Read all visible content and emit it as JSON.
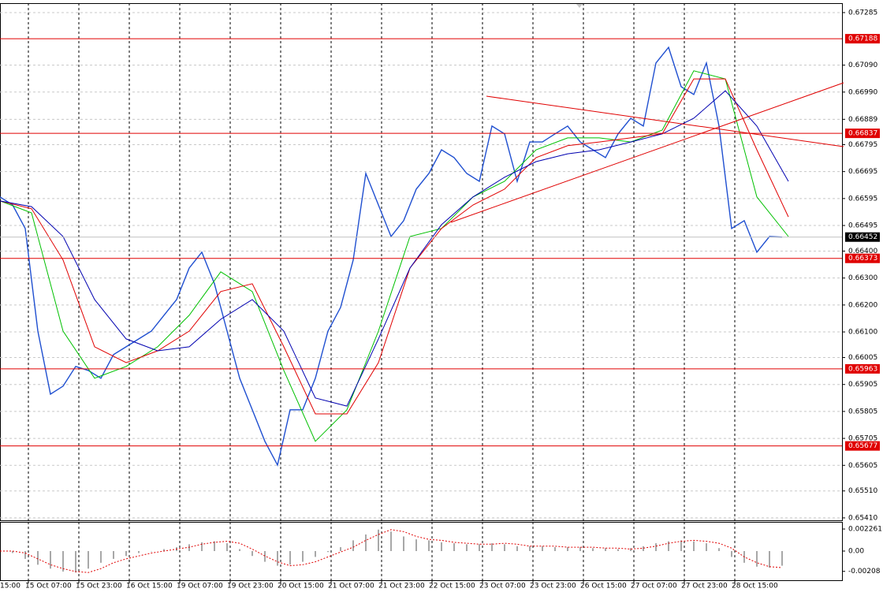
{
  "chart_data": [
    {
      "type": "line",
      "xlim": [
        0,
        267
      ],
      "xticks": [
        {
          "value": -7,
          "label": "15:00"
        },
        {
          "value": 9,
          "label": "15 Oct 07:00"
        },
        {
          "value": 25,
          "label": "15 Oct 23:00"
        },
        {
          "value": 41,
          "label": "16 Oct 15:00"
        },
        {
          "value": 57,
          "label": "19 Oct 07:00"
        },
        {
          "value": 73,
          "label": "19 Oct 23:00"
        },
        {
          "value": 89,
          "label": "20 Oct 15:00"
        },
        {
          "value": 105,
          "label": "21 Oct 07:00"
        },
        {
          "value": 121,
          "label": "21 Oct 23:00"
        },
        {
          "value": 137,
          "label": "22 Oct 15:00"
        },
        {
          "value": 153,
          "label": "23 Oct 07:00"
        },
        {
          "value": 169,
          "label": "23 Oct 23:00"
        },
        {
          "value": 185,
          "label": "26 Oct 15:00"
        },
        {
          "value": 201,
          "label": "27 Oct 07:00"
        },
        {
          "value": 217,
          "label": "27 Oct 23:00"
        },
        {
          "value": 233,
          "label": "28 Oct 15:00"
        }
      ],
      "ylim": [
        0.65401,
        0.6732
      ],
      "yticks": [
        0.67285,
        {
          "value": 0.6709,
          "label": "0.67090"
        },
        {
          "value": 0.6699,
          "label": "0.66990"
        },
        0.66889,
        0.66795,
        0.66695,
        0.66595,
        0.66495,
        {
          "value": 0.664,
          "label": "0.66400"
        },
        {
          "value": 0.663,
          "label": "0.66300"
        },
        {
          "value": 0.662,
          "label": "0.66200"
        },
        {
          "value": 0.661,
          "label": "0.66100"
        },
        0.66005,
        0.65905,
        0.65805,
        0.65705,
        0.65605,
        {
          "value": 0.6551,
          "label": "0.65510"
        },
        {
          "value": 0.6541,
          "label": "0.65410"
        }
      ],
      "grid": true,
      "series": [
        {
          "color": "#1f4fd0",
          "width": 1.4,
          "x": [
            0,
            4,
            8,
            12,
            16,
            20,
            24,
            28,
            32,
            36,
            40,
            44,
            48,
            52,
            56,
            60,
            64,
            68,
            72,
            76,
            80,
            84,
            88,
            92,
            96,
            100,
            104,
            108,
            112,
            116,
            120,
            124,
            128,
            132,
            136,
            140,
            144,
            148,
            152,
            156,
            160,
            164,
            168,
            172,
            176,
            180,
            184,
            188,
            192,
            196,
            200,
            204,
            208,
            212,
            216,
            220,
            224,
            228,
            232,
            236,
            240,
            244,
            248
          ],
          "values": [
            0.66601,
            0.66571,
            0.66484,
            0.66103,
            0.65869,
            0.65899,
            0.65972,
            0.65957,
            0.65928,
            0.66016,
            0.66045,
            0.66074,
            0.66103,
            0.66162,
            0.6622,
            0.66337,
            0.66396,
            0.66279,
            0.66103,
            0.65928,
            0.65811,
            0.65694,
            0.65606,
            0.65811,
            0.65811,
            0.65928,
            0.66103,
            0.66191,
            0.66367,
            0.66688,
            0.66571,
            0.66454,
            0.66513,
            0.6663,
            0.66688,
            0.66776,
            0.66747,
            0.66688,
            0.66659,
            0.66864,
            0.66835,
            0.66659,
            0.66805,
            0.66805,
            0.66835,
            0.66864,
            0.66805,
            0.66776,
            0.66747,
            0.66835,
            0.66893,
            0.66864,
            0.67098,
            0.67156,
            0.6701,
            0.66981,
            0.67098,
            0.66864,
            0.66484,
            0.66513,
            0.66396,
            0.66454,
            0.66452
          ]
        },
        {
          "color": "#00c000",
          "width": 1,
          "x": [
            0,
            10,
            20,
            30,
            40,
            50,
            60,
            70,
            80,
            90,
            100,
            110,
            120,
            130,
            140,
            150,
            160,
            170,
            180,
            190,
            200,
            210,
            220,
            230,
            240,
            250
          ],
          "values": [
            0.66586,
            0.66542,
            0.66103,
            0.65928,
            0.65972,
            0.66045,
            0.66162,
            0.66323,
            0.6625,
            0.65957,
            0.65694,
            0.65811,
            0.66103,
            0.66454,
            0.66484,
            0.66601,
            0.66659,
            0.66776,
            0.6682,
            0.6682,
            0.66805,
            0.66849,
            0.67069,
            0.67039,
            0.66601,
            0.66454
          ]
        },
        {
          "color": "#e00000",
          "width": 1,
          "x": [
            0,
            10,
            20,
            30,
            40,
            50,
            60,
            70,
            80,
            90,
            100,
            110,
            120,
            130,
            140,
            150,
            160,
            170,
            180,
            190,
            200,
            210,
            220,
            230,
            240,
            250
          ],
          "values": [
            0.66586,
            0.66557,
            0.66367,
            0.66045,
            0.65986,
            0.6603,
            0.66103,
            0.6625,
            0.66279,
            0.66045,
            0.65796,
            0.65796,
            0.65986,
            0.66337,
            0.66484,
            0.66571,
            0.6663,
            0.66747,
            0.66791,
            0.66805,
            0.6682,
            0.66835,
            0.67039,
            0.67039,
            0.66776,
            0.66527
          ]
        },
        {
          "color": "#0000b0",
          "width": 1,
          "x": [
            0,
            10,
            20,
            30,
            40,
            50,
            60,
            70,
            80,
            90,
            100,
            110,
            120,
            130,
            140,
            150,
            160,
            170,
            180,
            190,
            200,
            210,
            220,
            230,
            240,
            250
          ],
          "values": [
            0.66586,
            0.66565,
            0.66454,
            0.6622,
            0.66074,
            0.6603,
            0.66045,
            0.66147,
            0.6622,
            0.66103,
            0.65855,
            0.65825,
            0.66074,
            0.66337,
            0.66498,
            0.66601,
            0.66674,
            0.66732,
            0.66761,
            0.66776,
            0.66805,
            0.66835,
            0.66893,
            0.66995,
            0.66864,
            0.66659
          ]
        }
      ],
      "levels": {
        "color": "#e00000",
        "values": [
          0.67188,
          0.66837,
          0.66373,
          0.65963,
          0.65677
        ]
      },
      "last_price": 0.66452
    },
    {
      "type": "bar",
      "xlim": [
        0,
        267
      ],
      "ylim": [
        -0.00299,
        0.00299
      ],
      "yticks": [
        0.002261,
        {
          "value": 0,
          "label": "0.00"
        },
        -0.00208
      ],
      "series": [
        {
          "color": "#a8a8a8",
          "x": [
            0,
            4,
            8,
            12,
            16,
            20,
            24,
            28,
            32,
            36,
            40,
            44,
            48,
            52,
            56,
            60,
            64,
            68,
            72,
            76,
            80,
            84,
            88,
            92,
            96,
            100,
            104,
            108,
            112,
            116,
            120,
            124,
            128,
            132,
            136,
            140,
            144,
            148,
            152,
            156,
            160,
            164,
            168,
            172,
            176,
            180,
            184,
            188,
            192,
            196,
            200,
            204,
            208,
            212,
            216,
            220,
            224,
            228,
            232,
            236,
            240,
            244,
            248
          ],
          "values": [
            0,
            -0.0002,
            -0.0008,
            -0.0014,
            -0.0018,
            -0.0021,
            -0.0022,
            -0.0018,
            -0.0012,
            -0.0008,
            -0.0005,
            -0.0002,
            0,
            0.0002,
            0.0004,
            0.0007,
            0.0009,
            0.001,
            0.0008,
            0.0002,
            -0.0005,
            -0.0011,
            -0.0015,
            -0.0014,
            -0.0011,
            -0.0006,
            -0.0001,
            0.0004,
            0.0011,
            0.0017,
            0.0022,
            0.002,
            0.0015,
            0.0012,
            0.0011,
            0.0009,
            0.0008,
            0.0007,
            0.0007,
            0.0008,
            0.0007,
            0.0005,
            0.0005,
            0.0005,
            0.0004,
            0.0004,
            0.0004,
            0.0003,
            0.0003,
            0.0002,
            0.0003,
            0.0005,
            0.0008,
            0.001,
            0.0011,
            0.001,
            0.0008,
            0.0003,
            -0.0006,
            -0.0012,
            -0.0016,
            -0.0017,
            -0.0015
          ]
        },
        {
          "color": "#e00000",
          "kind": "line",
          "x": [
            0,
            4,
            8,
            12,
            16,
            20,
            24,
            28,
            32,
            36,
            40,
            44,
            48,
            52,
            56,
            60,
            64,
            68,
            72,
            76,
            80,
            84,
            88,
            92,
            96,
            100,
            104,
            108,
            112,
            116,
            120,
            124,
            128,
            132,
            136,
            140,
            144,
            148,
            152,
            156,
            160,
            164,
            168,
            172,
            176,
            180,
            184,
            188,
            192,
            196,
            200,
            204,
            208,
            212,
            216,
            220,
            224,
            228,
            232,
            236,
            240,
            244,
            248
          ],
          "values": [
            0,
            0,
            -0.0002,
            -0.0008,
            -0.0014,
            -0.0018,
            -0.0021,
            -0.0022,
            -0.0018,
            -0.0012,
            -0.0008,
            -0.0005,
            -0.0002,
            0,
            0.0002,
            0.0004,
            0.0007,
            0.0009,
            0.001,
            0.0008,
            0.0002,
            -0.0005,
            -0.0011,
            -0.0015,
            -0.0014,
            -0.0011,
            -0.0006,
            -0.0001,
            0.0004,
            0.0011,
            0.0017,
            0.0022,
            0.002,
            0.0015,
            0.0012,
            0.0011,
            0.0009,
            0.0008,
            0.0007,
            0.0007,
            0.0008,
            0.0007,
            0.0005,
            0.0005,
            0.0005,
            0.0004,
            0.0004,
            0.0004,
            0.0003,
            0.0003,
            0.0002,
            0.0003,
            0.0005,
            0.0008,
            0.001,
            0.0011,
            0.001,
            0.0008,
            0.0003,
            -0.0006,
            -0.0012,
            -0.0016,
            -0.0017
          ]
        }
      ]
    }
  ]
}
